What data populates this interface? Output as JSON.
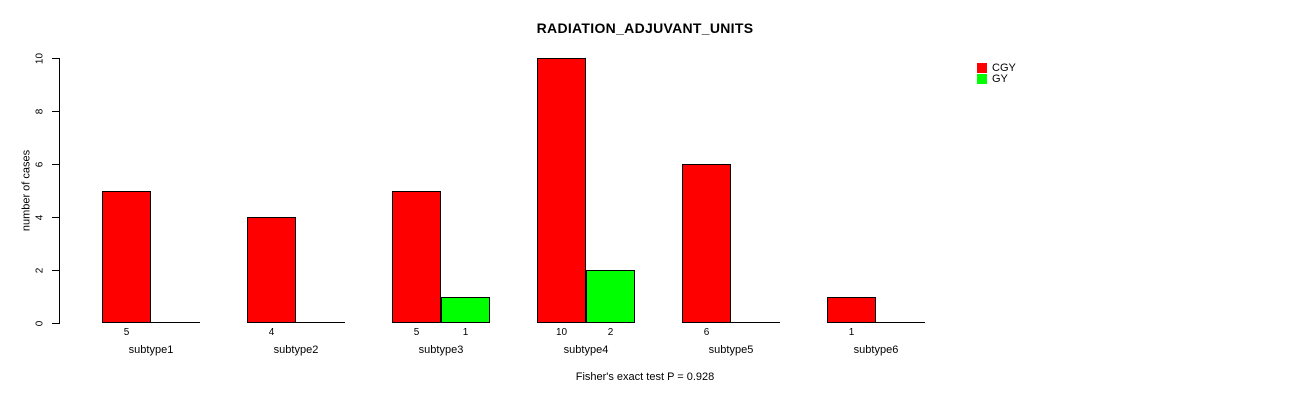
{
  "title": "RADIATION_ADJUVANT_UNITS",
  "footer_note": "Fisher's exact test P = 0.928",
  "y_axis": {
    "label": "number of cases",
    "tick_labels": [
      "0",
      "2",
      "4",
      "6",
      "8",
      "10"
    ]
  },
  "legend": {
    "position": "top-right",
    "items": [
      {
        "label": "CGY",
        "color": "#ff0000"
      },
      {
        "label": "GY",
        "color": "#00ff00"
      }
    ]
  },
  "chart_data": {
    "type": "bar",
    "title": "RADIATION_ADJUVANT_UNITS",
    "categories": [
      "subtype1",
      "subtype2",
      "subtype3",
      "subtype4",
      "subtype5",
      "subtype6"
    ],
    "series": [
      {
        "name": "CGY",
        "color": "#ff0000",
        "values": [
          5,
          4,
          5,
          10,
          6,
          1
        ]
      },
      {
        "name": "GY",
        "color": "#00ff00",
        "values": [
          0,
          0,
          1,
          2,
          0,
          0
        ]
      }
    ],
    "bar_count_labels_shown_for_nonzero_only": true,
    "xlabel": "",
    "ylabel": "number of cases",
    "ylim": [
      0,
      10
    ],
    "yticks": [
      0,
      2,
      4,
      6,
      8,
      10
    ],
    "grid": false,
    "legend_position": "top-right",
    "annotation": "Fisher's exact test P = 0.928",
    "bar_border_color": "#000000",
    "background_color": "#ffffff"
  }
}
